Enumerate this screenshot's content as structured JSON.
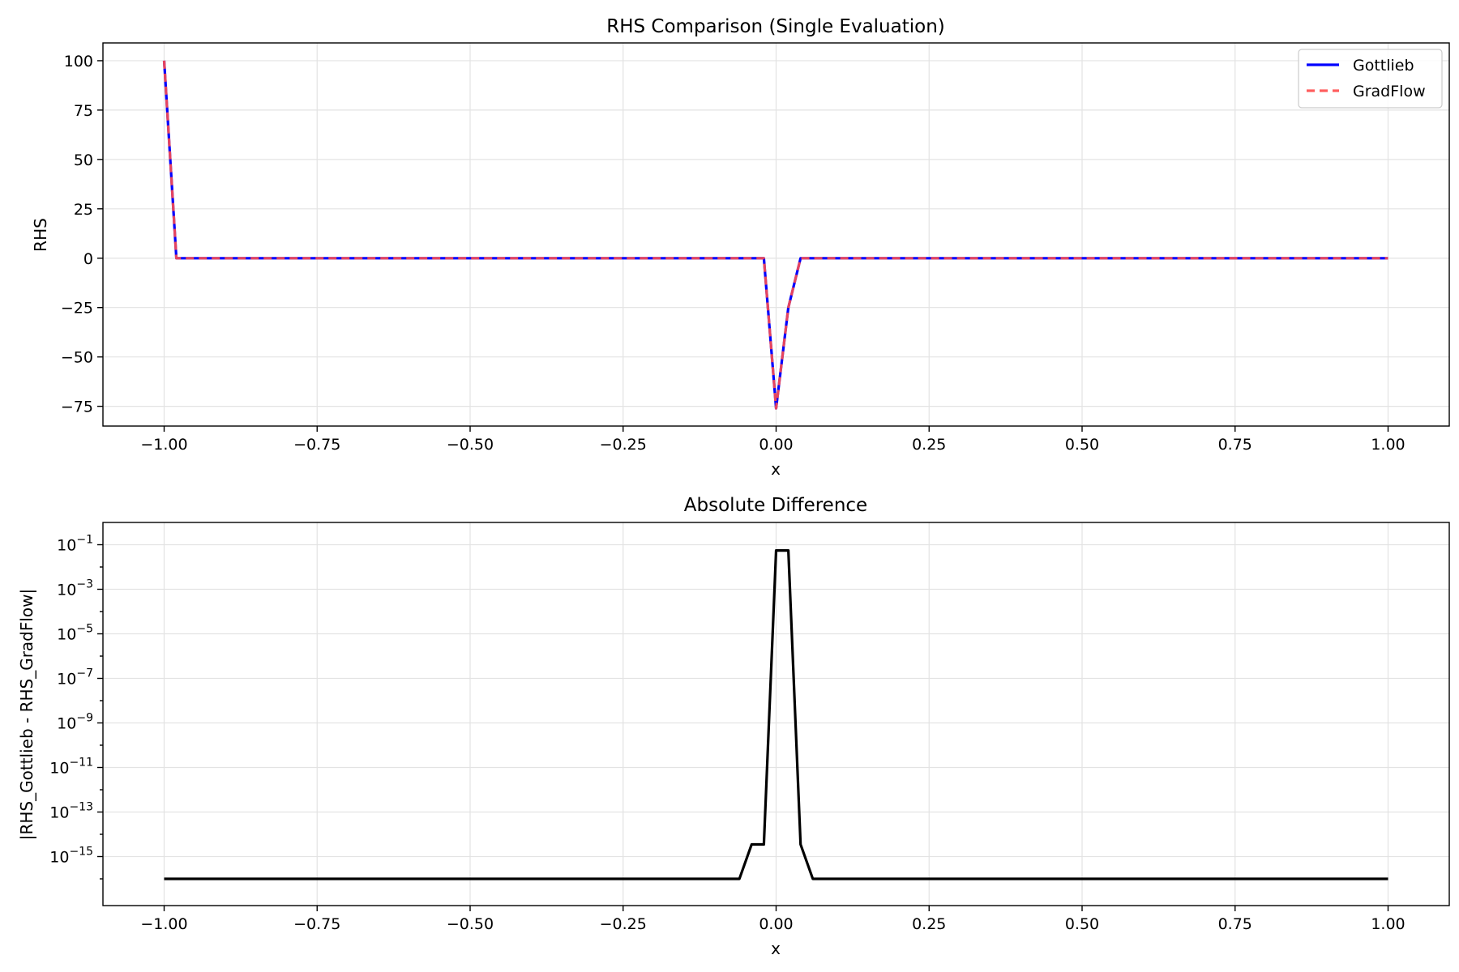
{
  "chart_data": [
    {
      "type": "line",
      "title": "RHS Comparison (Single Evaluation)",
      "xlabel": "x",
      "ylabel": "RHS",
      "xlim": [
        -1.1,
        1.1
      ],
      "ylim": [
        -85,
        109
      ],
      "yscale": "linear",
      "grid": true,
      "legend": "top-right",
      "xticks": [
        -1.0,
        -0.75,
        -0.5,
        -0.25,
        0.0,
        0.25,
        0.5,
        0.75,
        1.0
      ],
      "xtick_labels": [
        "−1.00",
        "−0.75",
        "−0.50",
        "−0.25",
        "0.00",
        "0.25",
        "0.50",
        "0.75",
        "1.00"
      ],
      "yticks": [
        100,
        75,
        50,
        25,
        0,
        -25,
        -50,
        -75
      ],
      "ytick_labels": [
        "100",
        "75",
        "50",
        "25",
        "0",
        "−25",
        "−50",
        "−75"
      ],
      "series": [
        {
          "name": "Gottlieb",
          "color": "#0000ff",
          "style": "solid",
          "x": [
            -1.0,
            -0.98,
            -0.02,
            0.0,
            0.02,
            0.04,
            1.0
          ],
          "y": [
            100,
            0,
            0,
            -76,
            -25,
            0,
            0
          ]
        },
        {
          "name": "GradFlow",
          "color": "#ff4d4d",
          "style": "dashed",
          "x": [
            -1.0,
            -0.98,
            -0.02,
            0.0,
            0.02,
            0.04,
            1.0
          ],
          "y": [
            100,
            0,
            0,
            -76,
            -25,
            0,
            0
          ]
        }
      ]
    },
    {
      "type": "line",
      "title": "Absolute Difference",
      "xlabel": "x",
      "ylabel": "|RHS_Gottlieb - RHS_GradFlow|",
      "xlim": [
        -1.1,
        1.1
      ],
      "ylim_log10": [
        -17.2,
        -0.0
      ],
      "yscale": "log",
      "grid": true,
      "xticks": [
        -1.0,
        -0.75,
        -0.5,
        -0.25,
        0.0,
        0.25,
        0.5,
        0.75,
        1.0
      ],
      "xtick_labels": [
        "−1.00",
        "−0.75",
        "−0.50",
        "−0.25",
        "0.00",
        "0.25",
        "0.50",
        "0.75",
        "1.00"
      ],
      "ytick_exponents": [
        -1,
        -3,
        -5,
        -7,
        -9,
        -11,
        -13,
        -15
      ],
      "ytick_labels": [
        "−1",
        "−3",
        "−5",
        "−7",
        "−9",
        "−11",
        "−13",
        "−15"
      ],
      "ytick_base": "10",
      "series": [
        {
          "color": "#000000",
          "style": "solid",
          "x": [
            -1.0,
            -0.06,
            -0.04,
            -0.02,
            0.0,
            0.02,
            0.04,
            0.06,
            1.0
          ],
          "y": [
            1e-16,
            1e-16,
            3.5e-15,
            3.5e-15,
            0.055,
            0.055,
            3.5e-15,
            1e-16,
            1e-16
          ]
        }
      ]
    }
  ]
}
